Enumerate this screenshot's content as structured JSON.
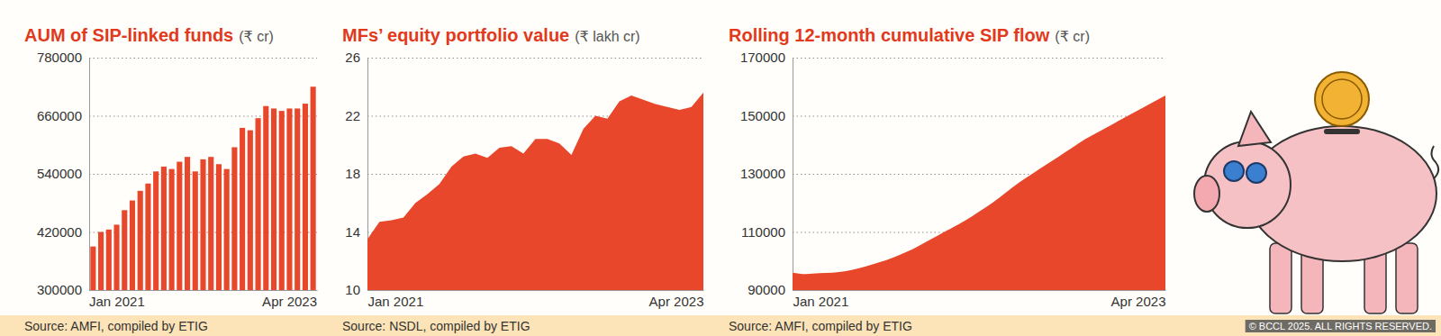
{
  "chart_data": [
    {
      "type": "bar",
      "title": "AUM of SIP-linked funds",
      "ylabel": "(₹ cr)",
      "source": "Source: AMFI, compiled by ETIG",
      "categories": [
        null,
        "Jan 2021",
        null,
        null,
        null,
        null,
        null,
        null,
        null,
        null,
        null,
        null,
        null,
        null,
        null,
        null,
        null,
        null,
        null,
        null,
        null,
        null,
        null,
        null,
        null,
        null,
        null,
        null,
        "Apr 2023"
      ],
      "values": [
        390000,
        420000,
        425000,
        435000,
        465000,
        485000,
        505000,
        520000,
        545000,
        555000,
        550000,
        565000,
        575000,
        545000,
        570000,
        575000,
        560000,
        550000,
        595000,
        635000,
        630000,
        655000,
        680000,
        675000,
        670000,
        675000,
        675000,
        685000,
        720000
      ],
      "color": "#e8472b",
      "ylim": [
        300000,
        780000
      ],
      "yticks": [
        300000,
        420000,
        540000,
        660000,
        780000
      ],
      "grid": true
    },
    {
      "type": "area",
      "title": "MFs’ equity portfolio value",
      "ylabel": "(₹ lakh cr)",
      "source": "Source: NSDL, compiled by ETIG",
      "categories": [
        null,
        "Jan 2021",
        null,
        null,
        null,
        null,
        null,
        null,
        null,
        null,
        null,
        null,
        null,
        null,
        null,
        null,
        null,
        null,
        null,
        null,
        null,
        null,
        null,
        null,
        null,
        null,
        null,
        null,
        "Apr 2023"
      ],
      "values": [
        13.5,
        14.7,
        14.8,
        15.0,
        16.0,
        16.6,
        17.3,
        18.5,
        19.2,
        19.4,
        19.1,
        19.8,
        19.9,
        19.4,
        20.4,
        20.4,
        20.1,
        19.3,
        21.1,
        22.0,
        21.8,
        23.0,
        23.4,
        23.1,
        22.8,
        22.6,
        22.4,
        22.6,
        23.6
      ],
      "color": "#e8472b",
      "ylim": [
        10,
        26
      ],
      "yticks": [
        10,
        14,
        18,
        22,
        26
      ],
      "grid": true,
      "line_style": "straight"
    },
    {
      "type": "area",
      "title": "Rolling 12-month cumulative SIP flow",
      "ylabel": "(₹ cr)",
      "source": "Source: AMFI, compiled by ETIG",
      "categories": [
        null,
        "Jan 2021",
        null,
        null,
        null,
        null,
        null,
        null,
        null,
        null,
        null,
        null,
        null,
        null,
        null,
        null,
        null,
        null,
        null,
        null,
        null,
        null,
        null,
        null,
        null,
        null,
        null,
        null,
        "Apr 2023"
      ],
      "values": [
        96000,
        95500,
        95800,
        96000,
        96500,
        97500,
        98800,
        100200,
        102000,
        104000,
        106500,
        109000,
        111500,
        114000,
        117000,
        120000,
        123500,
        127000,
        130000,
        133000,
        136000,
        139000,
        142000,
        144500,
        147000,
        149500,
        152000,
        154500,
        157000
      ],
      "color": "#e8472b",
      "ylim": [
        90000,
        170000
      ],
      "yticks": [
        90000,
        110000,
        130000,
        150000,
        170000
      ],
      "grid": true,
      "line_style": "smooth",
      "annotations": [
        "© BCCL 2025. ALL RIGHTS RESERVED."
      ]
    }
  ]
}
